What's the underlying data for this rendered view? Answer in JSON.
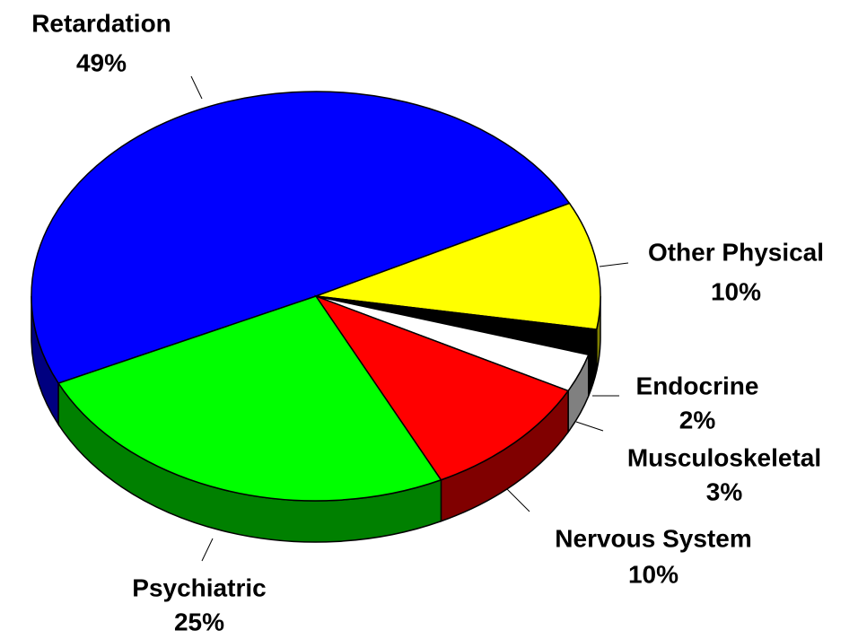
{
  "chart_data": {
    "type": "pie3d",
    "categories": [
      "Retardation",
      "Other Physical",
      "Endocrine",
      "Musculoskeletal",
      "Nervous System",
      "Psychiatric"
    ],
    "values": [
      49,
      10,
      2,
      3,
      10,
      25
    ],
    "value_labels": [
      "49%",
      "10%",
      "2%",
      "3%",
      "10%",
      "25%"
    ],
    "colors": [
      "#0000ff",
      "#ffff00",
      "#000000",
      "#ffffff",
      "#ff0000",
      "#00ff00"
    ]
  }
}
